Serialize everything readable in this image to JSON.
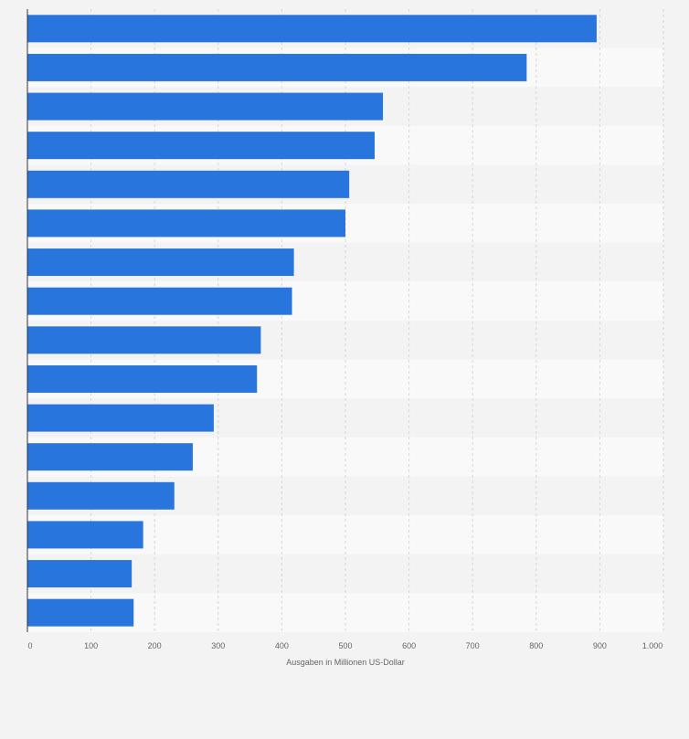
{
  "chart_data": {
    "type": "bar",
    "orientation": "horizontal",
    "title": "",
    "xlabel": "Ausgaben in Millionen US-Dollar",
    "ylabel": "",
    "xlim": [
      0,
      1000
    ],
    "x_ticks": [
      0,
      100,
      200,
      300,
      400,
      500,
      600,
      700,
      800,
      900,
      1000
    ],
    "x_tick_labels": [
      "0",
      "100",
      "200",
      "300",
      "400",
      "500",
      "600",
      "700",
      "800",
      "900",
      "1.000"
    ],
    "categories": [
      "",
      "",
      "",
      "",
      "",
      "",
      "",
      "",
      "",
      "",
      "",
      "",
      "",
      "",
      "",
      ""
    ],
    "values": [
      895,
      785,
      559,
      546,
      506,
      500,
      419,
      416,
      367,
      361,
      293,
      260,
      231,
      182,
      164,
      167
    ],
    "grid": true,
    "colors": {
      "bar": "#2876dd",
      "background": "#f3f3f3",
      "band_light": "#f9f9f9",
      "band_dark": "#f3f3f3",
      "grid": "#d6d6d6",
      "axis": "#333333",
      "text": "#666666"
    }
  }
}
